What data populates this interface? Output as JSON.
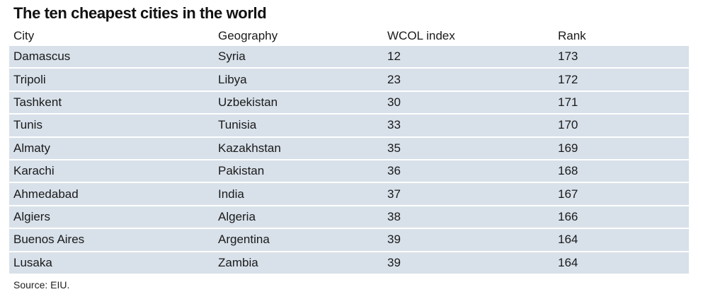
{
  "title": "The ten cheapest cities in the world",
  "table": {
    "columns": [
      "City",
      "Geography",
      "WCOL index",
      "Rank"
    ],
    "rows": [
      [
        "Damascus",
        "Syria",
        "12",
        "173"
      ],
      [
        "Tripoli",
        "Libya",
        "23",
        "172"
      ],
      [
        "Tashkent",
        "Uzbekistan",
        "30",
        "171"
      ],
      [
        "Tunis",
        "Tunisia",
        "33",
        "170"
      ],
      [
        "Almaty",
        "Kazakhstan",
        "35",
        "169"
      ],
      [
        "Karachi",
        "Pakistan",
        "36",
        "168"
      ],
      [
        "Ahmedabad",
        "India",
        "37",
        "167"
      ],
      [
        "Algiers",
        "Algeria",
        "38",
        "166"
      ],
      [
        "Buenos Aires",
        "Argentina",
        "39",
        "164"
      ],
      [
        "Lusaka",
        "Zambia",
        "39",
        "164"
      ]
    ]
  },
  "source": "Source: EIU.",
  "colors": {
    "row_background": "#d8e1ea"
  }
}
